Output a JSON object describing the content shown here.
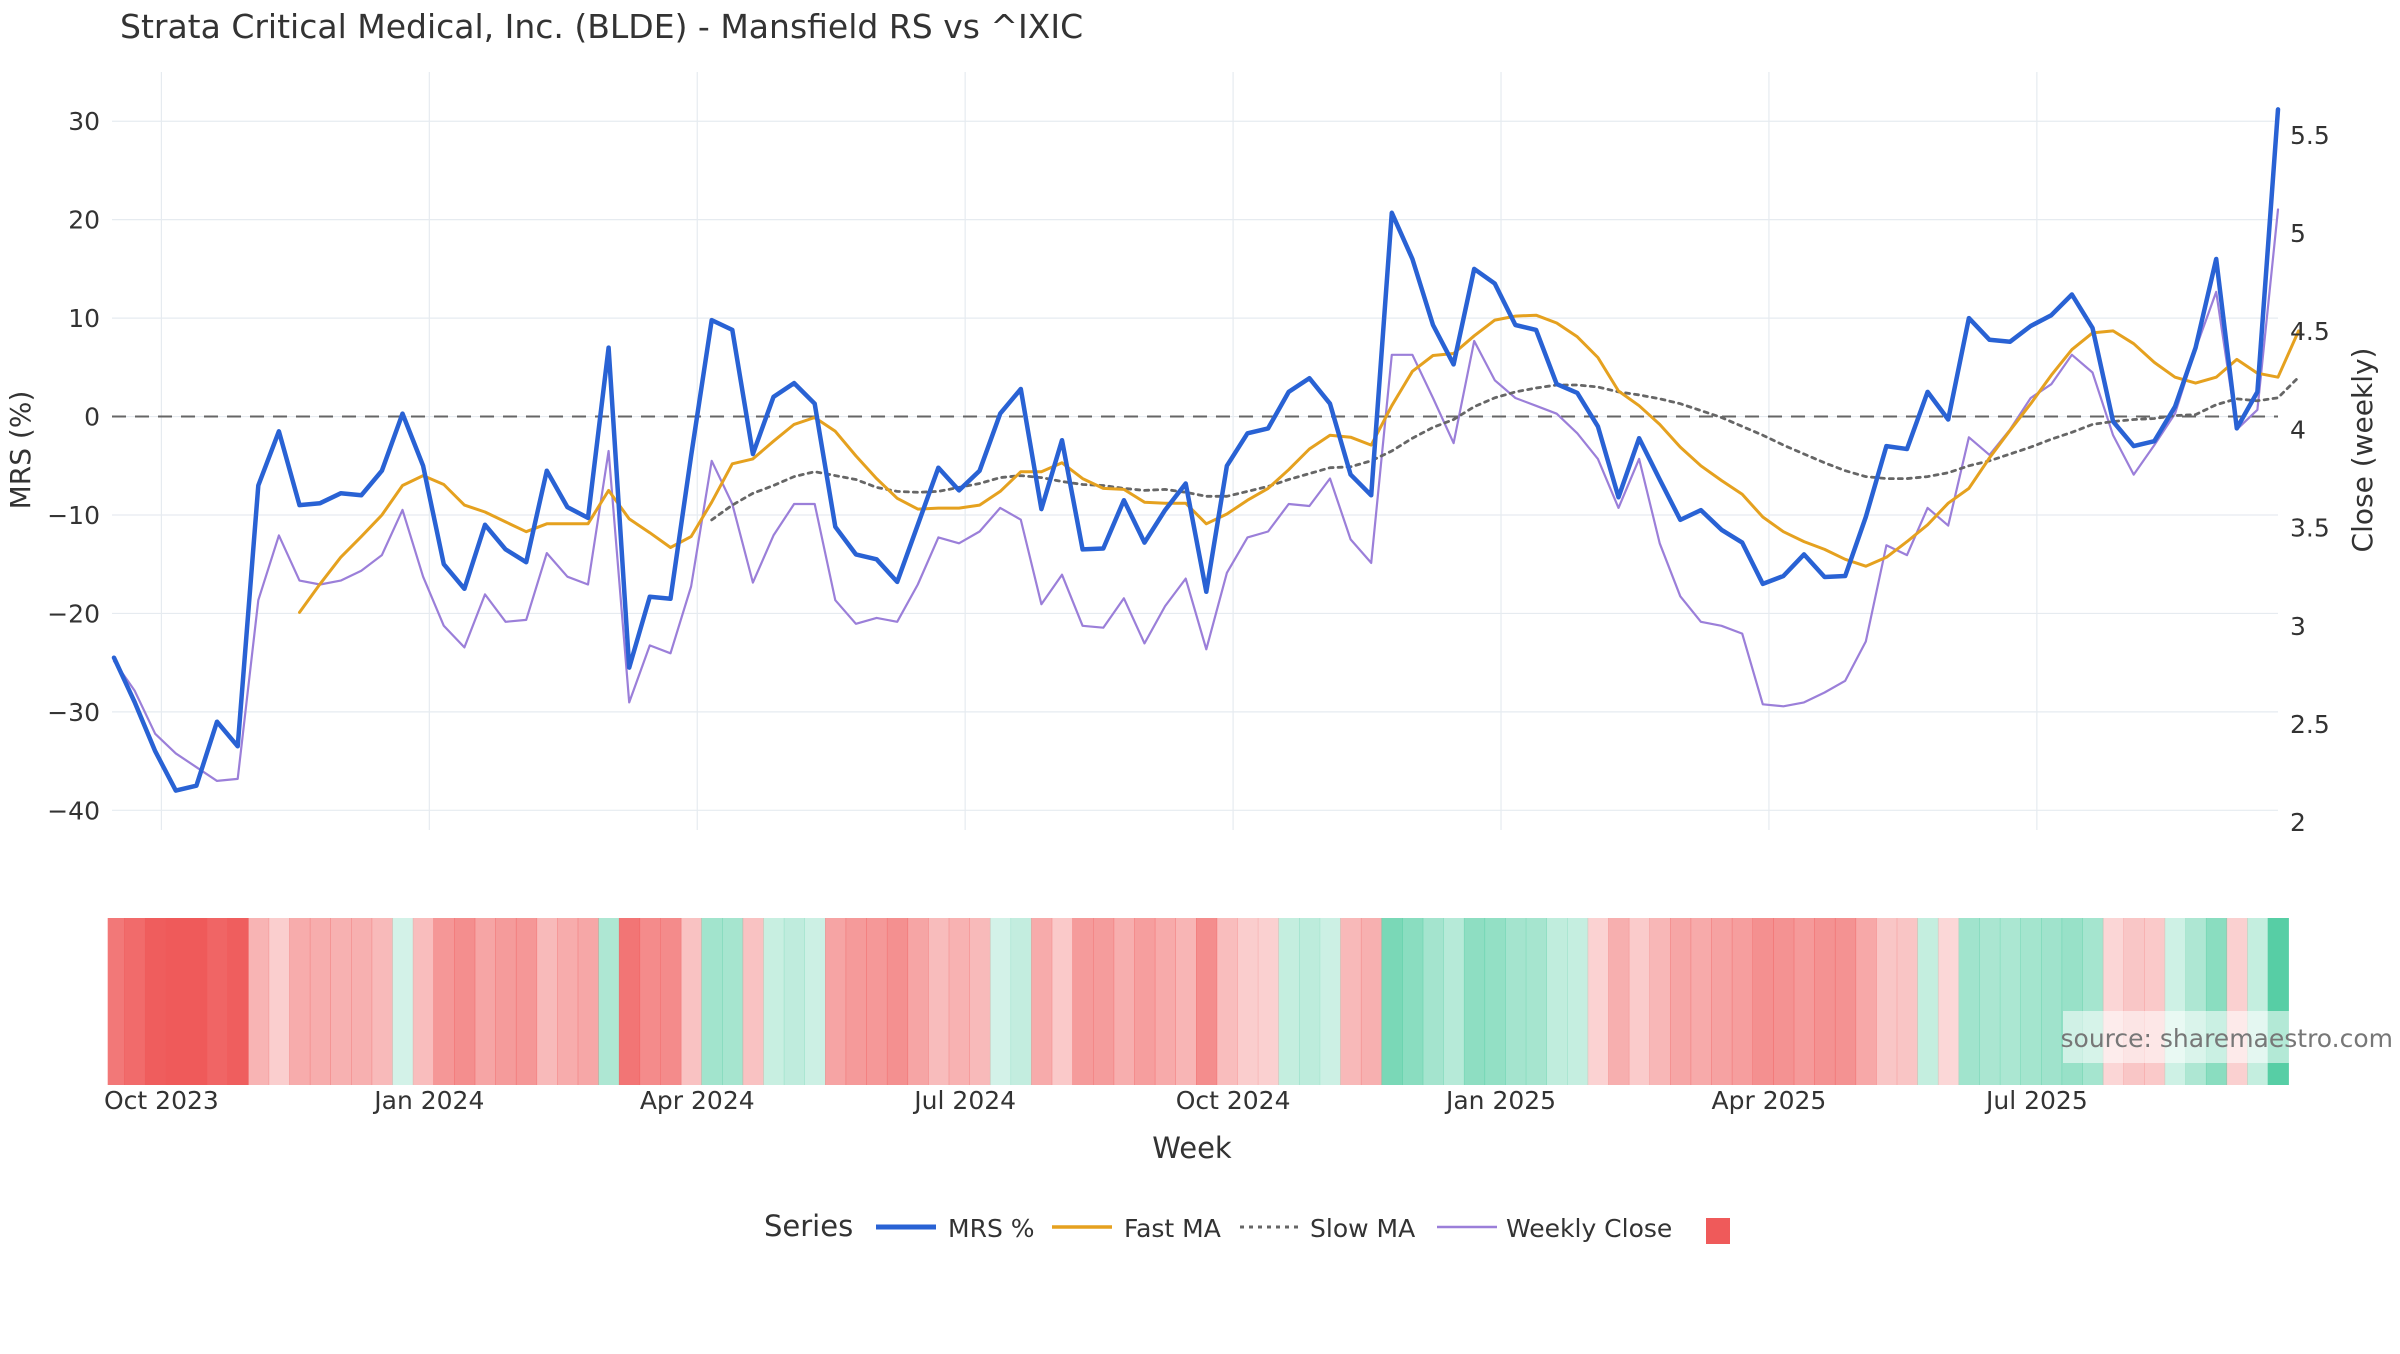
{
  "title": "Strata Critical Medical, Inc. (BLDE) - Mansfield RS vs ^IXIC",
  "source_text": "source: sharemaestro.com",
  "colors": {
    "mrs": "#2962d4",
    "fast_ma": "#e5a11f",
    "slow_ma": "#666666",
    "weekly_close": "#9b7fd9",
    "zero_line": "#666666",
    "heat_negative": "#ef5a5a",
    "heat_positive": "#4ccb9f",
    "grid": "#e6ebf0"
  },
  "chart_data": {
    "type": "line",
    "title": "Strata Critical Medical, Inc. (BLDE) - Mansfield RS vs ^IXIC",
    "xlabel": "Week",
    "ylabel": "MRS (%)",
    "y2label": "Close (weekly)",
    "ylim": [
      -42,
      35
    ],
    "y2lim": [
      1.96,
      5.82
    ],
    "y_ticks": [
      "30",
      "20",
      "10",
      "0",
      "−10",
      "−20",
      "−30",
      "−40"
    ],
    "y_tick_values": [
      30,
      20,
      10,
      0,
      -10,
      -20,
      -30,
      -40
    ],
    "y2_ticks": [
      "5.5",
      "5",
      "4.5",
      "4",
      "3.5",
      "3",
      "2.5",
      "2"
    ],
    "y2_tick_values": [
      5.5,
      5,
      4.5,
      4,
      3.5,
      3,
      2.5,
      2
    ],
    "x_ticks": [
      "Oct 2023",
      "Jan 2024",
      "Apr 2024",
      "Jul 2024",
      "Oct 2024",
      "Jan 2025",
      "Apr 2025",
      "Jul 2025"
    ],
    "x_tick_weeks": [
      2.3,
      15.3,
      28.3,
      41.3,
      54.3,
      67.3,
      80.3,
      93.3
    ],
    "grid": true,
    "zero_line": true,
    "legend_placement": "bottom-center",
    "legend_title": "Series",
    "legend": [
      "MRS %",
      "Fast MA",
      "Slow MA",
      "Weekly Close"
    ],
    "heatmap_panel": "MRS % colored strip (red = negative, green = positive)",
    "series": [
      {
        "name": "MRS %",
        "style": "solid-thick",
        "axis": "left",
        "values": [
          -24.5,
          -29,
          -34,
          -38,
          -37.5,
          -31,
          -33.5,
          -7,
          -1.5,
          -9,
          -8.8,
          -7.8,
          -8,
          -5.5,
          0.3,
          -5,
          -15,
          -17.5,
          -11,
          -13.5,
          -14.8,
          -5.5,
          -9.2,
          -10.3,
          7,
          -25.5,
          -18.3,
          -18.5,
          -4,
          9.8,
          8.8,
          -3.8,
          2,
          3.4,
          1.3,
          -11.2,
          -14,
          -14.5,
          -16.8,
          -11,
          -5.2,
          -7.5,
          -5.5,
          0.3,
          2.8,
          -9.4,
          -2.4,
          -13.5,
          -13.4,
          -8.5,
          -12.8,
          -9.5,
          -6.8,
          -17.8,
          -5,
          -1.7,
          -1.2,
          2.5,
          3.9,
          1.3,
          -5.9,
          -8,
          20.7,
          16,
          9.3,
          5.3,
          15,
          13.5,
          9.3,
          8.8,
          3.3,
          2.4,
          -1,
          -8.2,
          -2.2,
          -6.4,
          -10.5,
          -9.5,
          -11.5,
          -12.8,
          -17,
          -16.2,
          -14,
          -16.3,
          -16.2,
          -10.2,
          -3,
          -3.3,
          2.5,
          -0.3,
          10,
          7.8,
          7.6,
          9.2,
          10.3,
          12.4,
          9,
          -0.5,
          -3,
          -2.5,
          1,
          7,
          16,
          -1.2,
          2.5,
          31.2
        ]
      },
      {
        "name": "Fast MA",
        "style": "solid",
        "axis": "left",
        "values": [
          null,
          null,
          null,
          null,
          null,
          null,
          null,
          null,
          null,
          -19.9,
          -17,
          -14.3,
          -12.2,
          -10,
          -7,
          -6,
          -6.9,
          -9,
          -9.7,
          -10.7,
          -11.7,
          -10.9,
          -10.9,
          -10.9,
          -7.5,
          -10.4,
          -11.8,
          -13.3,
          -12.2,
          -8.7,
          -4.8,
          -4.3,
          -2.5,
          -0.8,
          -0.1,
          -1.5,
          -4,
          -6.3,
          -8.3,
          -9.4,
          -9.3,
          -9.3,
          -9,
          -7.6,
          -5.6,
          -5.6,
          -4.7,
          -6.3,
          -7.3,
          -7.4,
          -8.7,
          -8.8,
          -8.8,
          -10.9,
          -9.9,
          -8.5,
          -7.3,
          -5.4,
          -3.3,
          -1.9,
          -2.1,
          -2.9,
          1.1,
          4.6,
          6.2,
          6.4,
          8.2,
          9.8,
          10.2,
          10.3,
          9.5,
          8.1,
          6,
          2.6,
          1.1,
          -0.8,
          -3.1,
          -5,
          -6.5,
          -7.9,
          -10.2,
          -11.7,
          -12.7,
          -13.5,
          -14.5,
          -15.2,
          -14.3,
          -12.7,
          -11,
          -8.8,
          -7.3,
          -4.2,
          -1.4,
          1.3,
          4.2,
          6.8,
          8.5,
          8.7,
          7.4,
          5.5,
          4,
          3.4,
          4,
          5.8,
          4.4,
          4,
          8.7
        ]
      },
      {
        "name": "Slow MA",
        "style": "dotted",
        "axis": "left",
        "values": [
          null,
          null,
          null,
          null,
          null,
          null,
          null,
          null,
          null,
          null,
          null,
          null,
          null,
          null,
          null,
          null,
          null,
          null,
          null,
          null,
          null,
          null,
          null,
          null,
          null,
          null,
          null,
          null,
          null,
          -10.5,
          -9,
          -7.8,
          -7,
          -6.1,
          -5.6,
          -6,
          -6.4,
          -7.2,
          -7.6,
          -7.7,
          -7.6,
          -7.2,
          -6.8,
          -6.2,
          -6,
          -6.2,
          -6.6,
          -6.9,
          -7,
          -7.3,
          -7.5,
          -7.4,
          -7.7,
          -8.1,
          -8.1,
          -7.6,
          -7.1,
          -6.4,
          -5.8,
          -5.2,
          -5.1,
          -4.5,
          -3.5,
          -2.2,
          -1.1,
          -0.3,
          1,
          1.9,
          2.5,
          2.9,
          3.2,
          3.2,
          3,
          2.5,
          2.2,
          1.8,
          1.3,
          0.6,
          -0.1,
          -1,
          -1.9,
          -2.9,
          -3.8,
          -4.7,
          -5.5,
          -6.1,
          -6.3,
          -6.3,
          -6.1,
          -5.7,
          -5,
          -4.5,
          -3.8,
          -3.1,
          -2.3,
          -1.6,
          -0.8,
          -0.5,
          -0.3,
          -0.2,
          0.1,
          0.2,
          1.2,
          1.8,
          1.6,
          1.9,
          4
        ]
      },
      {
        "name": "Weekly Close",
        "style": "solid-thin",
        "axis": "right",
        "values": [
          2.82,
          2.67,
          2.45,
          2.35,
          2.28,
          2.21,
          2.22,
          3.13,
          3.46,
          3.23,
          3.21,
          3.23,
          3.28,
          3.36,
          3.59,
          3.25,
          3.0,
          2.89,
          3.16,
          3.02,
          3.03,
          3.37,
          3.25,
          3.21,
          3.89,
          2.61,
          2.9,
          2.86,
          3.2,
          3.84,
          3.62,
          3.22,
          3.46,
          3.62,
          3.62,
          3.13,
          3.01,
          3.04,
          3.02,
          3.21,
          3.45,
          3.42,
          3.48,
          3.6,
          3.54,
          3.11,
          3.26,
          3.0,
          2.99,
          3.14,
          2.91,
          3.1,
          3.24,
          2.88,
          3.27,
          3.45,
          3.48,
          3.62,
          3.61,
          3.75,
          3.44,
          3.32,
          4.38,
          4.38,
          4.16,
          3.93,
          4.45,
          4.25,
          4.16,
          4.12,
          4.08,
          3.98,
          3.85,
          3.6,
          3.85,
          3.42,
          3.15,
          3.02,
          3.0,
          2.96,
          2.6,
          2.59,
          2.61,
          2.66,
          2.72,
          2.92,
          3.41,
          3.36,
          3.6,
          3.51,
          3.96,
          3.87,
          4.0,
          4.16,
          4.23,
          4.38,
          4.29,
          3.97,
          3.77,
          3.92,
          4.08,
          4.41,
          4.7,
          4.0,
          4.1,
          5.12
        ]
      }
    ]
  }
}
